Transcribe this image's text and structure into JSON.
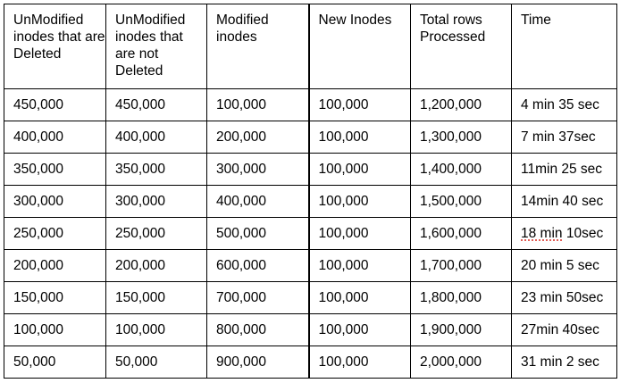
{
  "headers": [
    "UnModified inodes that are Deleted",
    "UnModified inodes that are not Deleted",
    "Modified inodes",
    "New Inodes",
    "Total rows Processed",
    "Time"
  ],
  "rows": [
    [
      "450,000",
      "450,000",
      "100,000",
      "100,000",
      "1,200,000",
      "4 min 35 sec"
    ],
    [
      "400,000",
      "400,000",
      "200,000",
      "100,000",
      "1,300,000",
      "7 min 37sec"
    ],
    [
      "350,000",
      "350,000",
      "300,000",
      "100,000",
      "1,400,000",
      "11min 25 sec"
    ],
    [
      "300,000",
      "300,000",
      "400,000",
      "100,000",
      "1,500,000",
      "14min 40 sec"
    ],
    [
      "250,000",
      "250,000",
      "500,000",
      "100,000",
      "1,600,000",
      "18 min 10sec"
    ],
    [
      "200,000",
      "200,000",
      "600,000",
      "100,000",
      "1,700,000",
      "20 min 5 sec"
    ],
    [
      "150,000",
      "150,000",
      "700,000",
      "100,000",
      "1,800,000",
      "23 min 50sec"
    ],
    [
      "100,000",
      "100,000",
      "800,000",
      "100,000",
      "1,900,000",
      "27min 40sec"
    ],
    [
      "50,000",
      "50,000",
      "900,000",
      "100,000",
      "2,000,000",
      "31 min 2 sec"
    ]
  ],
  "spellcheck_flag": {
    "row": 4,
    "col": 5,
    "word": "18 min"
  }
}
